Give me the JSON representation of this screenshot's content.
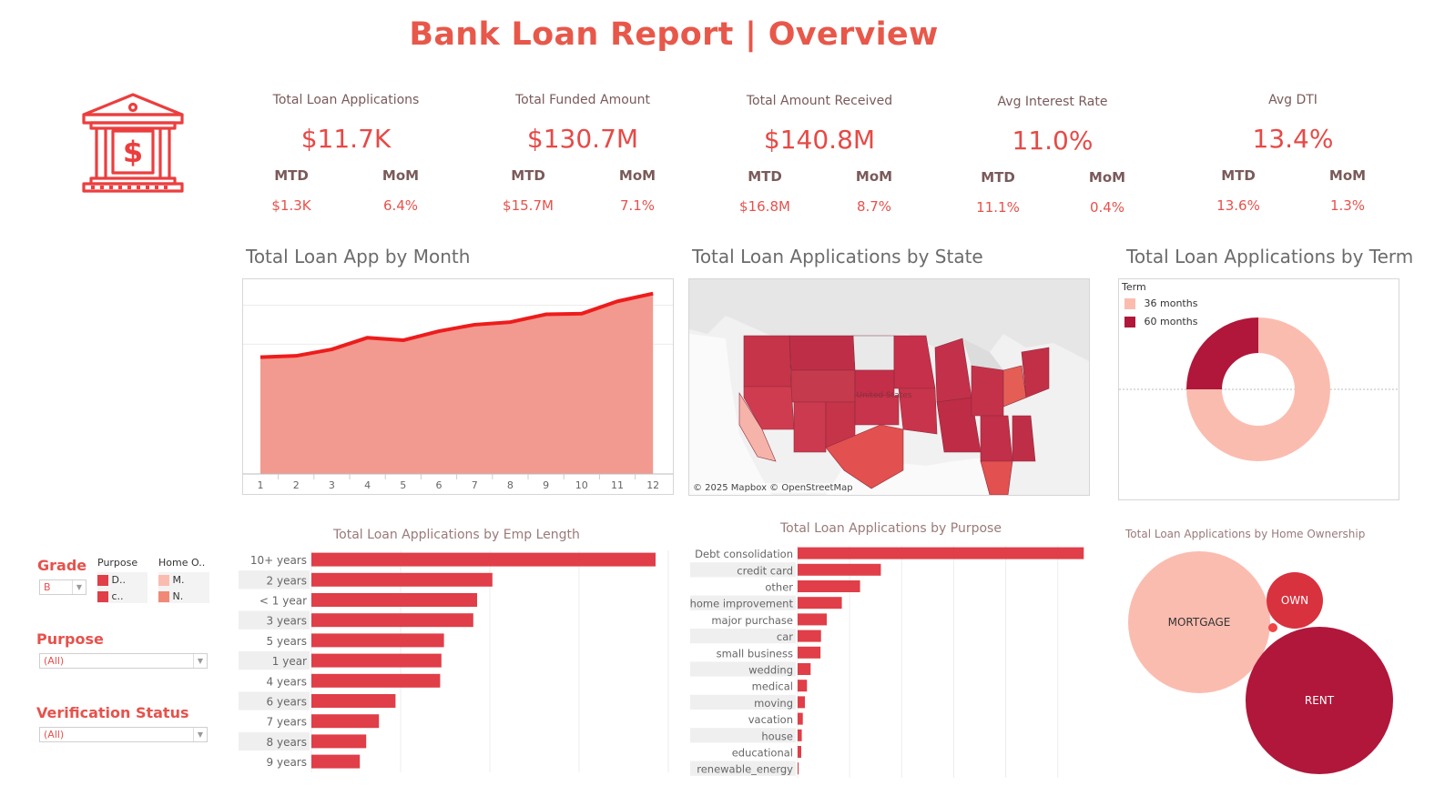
{
  "title": "Bank Loan Report | Overview",
  "kpis": [
    {
      "label": "Total Loan Applications",
      "value": "$11.7K",
      "mtd_label": "MTD",
      "mom_label": "MoM",
      "mtd": "$1.3K",
      "mom": "6.4%"
    },
    {
      "label": "Total Funded Amount",
      "value": "$130.7M",
      "mtd_label": "MTD",
      "mom_label": "MoM",
      "mtd": "$15.7M",
      "mom": "7.1%"
    },
    {
      "label": "Total Amount Received",
      "value": "$140.8M",
      "mtd_label": "MTD",
      "mom_label": "MoM",
      "mtd": "$16.8M",
      "mom": "8.7%"
    },
    {
      "label": "Avg Interest Rate",
      "value": "11.0%",
      "mtd_label": "MTD",
      "mom_label": "MoM",
      "mtd": "11.1%",
      "mom": "0.4%"
    },
    {
      "label": "Avg DTI",
      "value": "13.4%",
      "mtd_label": "MTD",
      "mom_label": "MoM",
      "mtd": "13.6%",
      "mom": "1.3%"
    }
  ],
  "filters": {
    "grade_label": "Grade",
    "grade_value": "B",
    "purpose_legend_title": "Purpose",
    "purpose_legend_items": [
      "D..",
      "c.."
    ],
    "home_legend_title": "Home O..",
    "home_legend_items": [
      "M.",
      "N."
    ],
    "purpose_label": "Purpose",
    "purpose_value": "(All)",
    "verification_label": "Verification Status",
    "verification_value": "(All)"
  },
  "map": {
    "title": "Total Loan Applications by State",
    "country_label": "United States",
    "attribution": "© 2025 Mapbox © OpenStreetMap"
  },
  "colors": {
    "accent": "#e8584a",
    "bar": "#e03e48",
    "area_fill": "#f29a8f",
    "line": "#ee1c1c",
    "light": "#fbbcb0",
    "dark": "#b0173a",
    "mid": "#d8323f"
  },
  "chart_data": [
    {
      "type": "area",
      "title": "Total Loan App by Month",
      "x": [
        1,
        2,
        3,
        4,
        5,
        6,
        7,
        8,
        9,
        10,
        11,
        12
      ],
      "values": [
        900,
        910,
        960,
        1050,
        1030,
        1100,
        1150,
        1170,
        1230,
        1235,
        1330,
        1390
      ],
      "ylim": [
        0,
        1500
      ],
      "grid": true
    },
    {
      "type": "pie",
      "title": "Total Loan Applications by Term",
      "legend_title": "Term",
      "categories": [
        "36 months",
        "60 months"
      ],
      "values": [
        75,
        25
      ],
      "legend_position": "top-left"
    },
    {
      "type": "bar",
      "title": "Total Loan Applications by Emp Length",
      "orientation": "horizontal",
      "categories": [
        "10+ years",
        "2 years",
        "< 1 year",
        "3 years",
        "5 years",
        "1 year",
        "4 years",
        "6 years",
        "7 years",
        "8 years",
        "9 years"
      ],
      "values": [
        2700,
        1420,
        1300,
        1270,
        1040,
        1020,
        1010,
        660,
        530,
        430,
        380
      ],
      "xlim": [
        0,
        3000
      ],
      "grid": true
    },
    {
      "type": "bar",
      "title": "Total Loan Applications by Purpose",
      "orientation": "horizontal",
      "categories": [
        "Debt consolidation",
        "credit card",
        "other",
        "home improvement",
        "major purchase",
        "car",
        "small business",
        "wedding",
        "medical",
        "moving",
        "vacation",
        "house",
        "educational",
        "renewable_energy"
      ],
      "values": [
        5500,
        1600,
        1200,
        850,
        560,
        450,
        440,
        250,
        180,
        140,
        100,
        80,
        70,
        20
      ],
      "xlim": [
        0,
        5600
      ],
      "grid": true
    },
    {
      "type": "bubble",
      "title": "Total Loan Applications by Home Ownership",
      "categories": [
        "MORTGAGE",
        "OWN",
        "RENT",
        ""
      ],
      "values": [
        5200,
        930,
        6000,
        40
      ]
    }
  ]
}
